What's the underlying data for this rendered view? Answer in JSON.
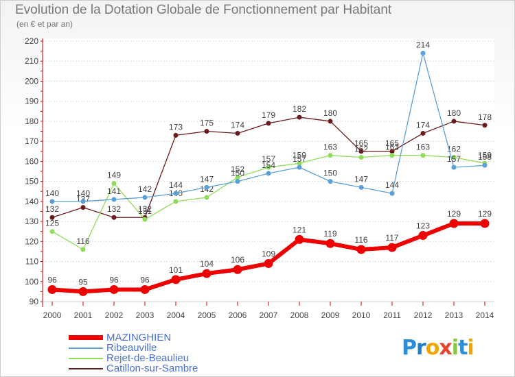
{
  "chart_data": {
    "type": "line",
    "title": "Evolution de la Dotation Globale de Fonctionnement par Habitant",
    "subtitle": "(en € et par an)",
    "xlabel": "",
    "ylabel": "",
    "ylim": [
      90,
      220
    ],
    "yticks": [
      90,
      100,
      110,
      120,
      130,
      140,
      150,
      160,
      170,
      180,
      190,
      200,
      210,
      220
    ],
    "categories": [
      "2000",
      "2001",
      "2002",
      "2003",
      "2004",
      "2005",
      "2006",
      "2007",
      "2008",
      "2009",
      "2010",
      "2011",
      "2012",
      "2013",
      "2014"
    ],
    "series": [
      {
        "name": "Catillon-sur-Sambre",
        "color": "#6b1a1a",
        "values": [
          132,
          137,
          132,
          132,
          173,
          175,
          174,
          179,
          182,
          180,
          165,
          165,
          174,
          180,
          178
        ]
      },
      {
        "name": "Rejet-de-Beaulieu",
        "color": "#8fdc5a",
        "values": [
          125,
          116,
          149,
          131,
          140,
          142,
          152,
          157,
          159,
          163,
          162,
          163,
          163,
          162,
          159
        ]
      },
      {
        "name": "Ribeauville",
        "color": "#5a9fd8",
        "values": [
          140,
          140,
          141,
          142,
          144,
          147,
          150,
          154,
          157,
          150,
          147,
          144,
          214,
          157,
          158
        ]
      },
      {
        "name": "MAZINGHIEN",
        "color": "#ee0000",
        "values": [
          96,
          95,
          96,
          96,
          101,
          104,
          106,
          109,
          121,
          119,
          116,
          117,
          123,
          129,
          129
        ]
      }
    ],
    "legend": [
      "MAZINGHIEN",
      "Ribeauville",
      "Rejet-de-Beaulieu",
      "Catillon-sur-Sambre"
    ],
    "grid": "horizontal",
    "legend_position": "bottom-left"
  },
  "logo": {
    "text": "Proxiti"
  }
}
